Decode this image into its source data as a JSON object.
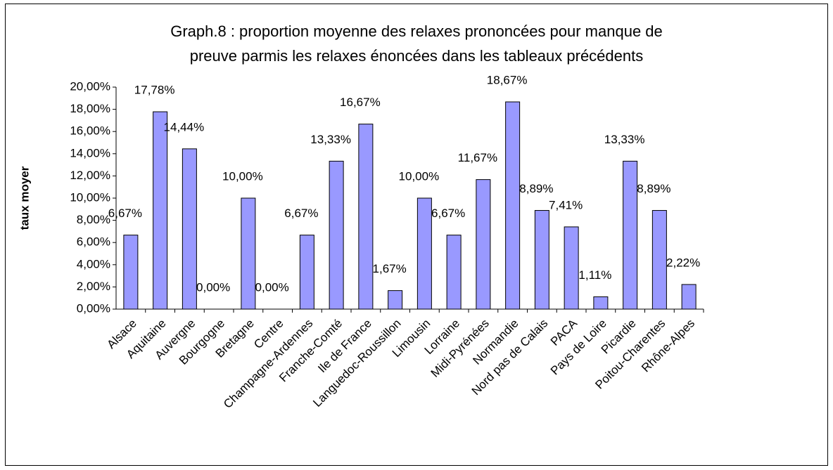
{
  "chart_data": {
    "type": "bar",
    "title": [
      "Graph.8 : proportion moyenne des relaxes prononcées pour manque de",
      "preuve parmis les relaxes énoncées dans les tableaux précédents"
    ],
    "y_label": "taux moyer",
    "categories": [
      "Alsace",
      "Aquitaine",
      "Auvergne",
      "Bourgogne",
      "Bretagne",
      "Centre",
      "Champagne-Ardennes",
      "Franche-Comté",
      "Ile de France",
      "Languedoc-Roussillon",
      "Limousin",
      "Lorraine",
      "Midi-Pyrénées",
      "Normandie",
      "Nord pas de Calais",
      "PACA",
      "Pays de Loire",
      "Picardie",
      "Poitou-Charentes",
      "Rhône-Alpes"
    ],
    "values": [
      6.67,
      17.78,
      14.44,
      0,
      10,
      0,
      6.67,
      13.33,
      16.67,
      1.67,
      10,
      6.67,
      11.67,
      18.67,
      8.89,
      7.41,
      1.11,
      13.33,
      8.89,
      2.22
    ],
    "value_labels": [
      "6,67%",
      "17,78%",
      "14,44%",
      "0,00%",
      "10,00%",
      "0,00%",
      "6,67%",
      "13,33%",
      "16,67%",
      "1,67%",
      "10,00%",
      "6,67%",
      "11,67%",
      "18,67%",
      "8,89%",
      "7,41%",
      "1,11%",
      "13,33%",
      "8,89%",
      "2,22%"
    ],
    "color": "#9999ff",
    "ylim": [
      0,
      20
    ],
    "yticks": [
      {
        "value": 0,
        "label": "0,00%"
      },
      {
        "value": 2,
        "label": "2,00%"
      },
      {
        "value": 4,
        "label": "4,00%"
      },
      {
        "value": 6,
        "label": "6,00%"
      },
      {
        "value": 8,
        "label": "8,00%"
      },
      {
        "value": 10,
        "label": "10,00%"
      },
      {
        "value": 12,
        "label": "12,00%"
      },
      {
        "value": 14,
        "label": "14,00%"
      },
      {
        "value": 16,
        "label": "16,00%"
      },
      {
        "value": 18,
        "label": "18,00%"
      },
      {
        "value": 20,
        "label": "20,00%"
      }
    ]
  }
}
